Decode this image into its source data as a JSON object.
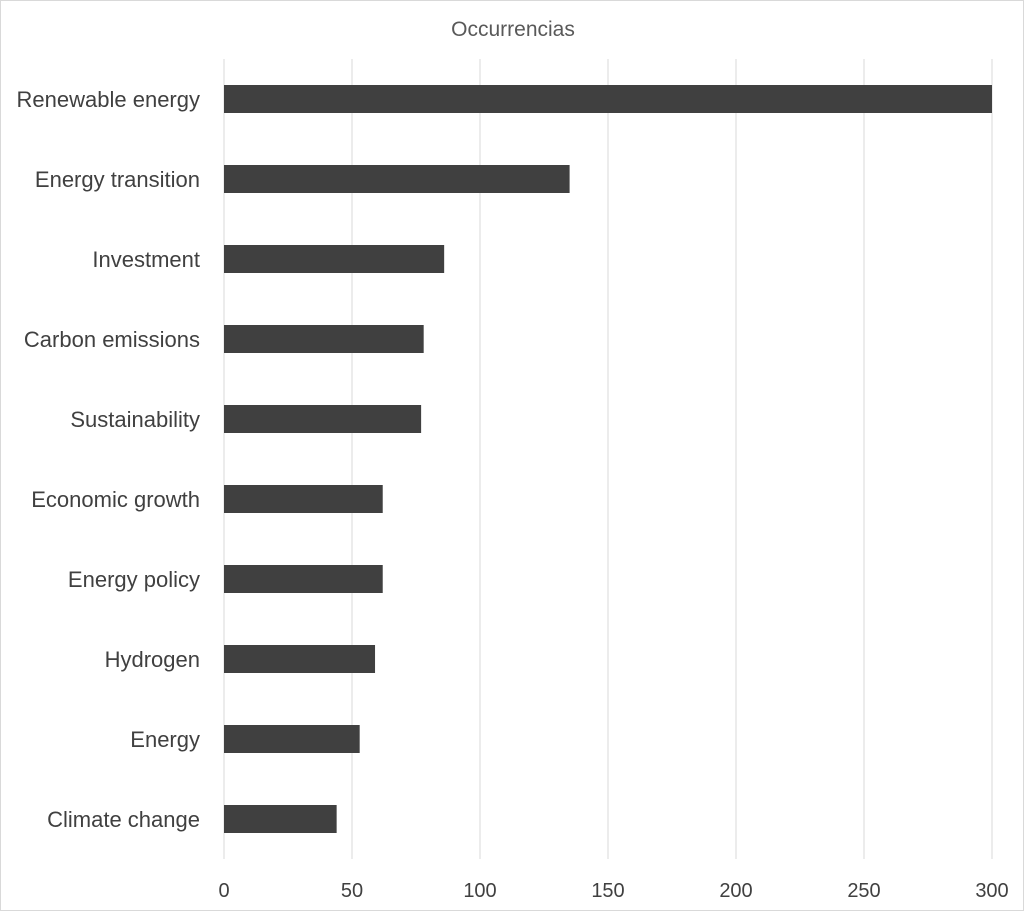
{
  "chart_data": {
    "type": "bar",
    "orientation": "horizontal",
    "title": "Occurrencias",
    "categories": [
      "Renewable energy",
      "Energy transition",
      "Investment",
      "Carbon emissions",
      "Sustainability",
      "Economic growth",
      "Energy policy",
      "Hydrogen",
      "Energy",
      "Climate change"
    ],
    "values": [
      300,
      135,
      86,
      78,
      77,
      62,
      62,
      59,
      53,
      44
    ],
    "xlim": [
      0,
      300
    ],
    "xticks": [
      0,
      50,
      100,
      150,
      200,
      250,
      300
    ],
    "grid": "vertical",
    "legend": "none",
    "bar_color": "#404040",
    "grid_color": "#d9d9d9"
  }
}
